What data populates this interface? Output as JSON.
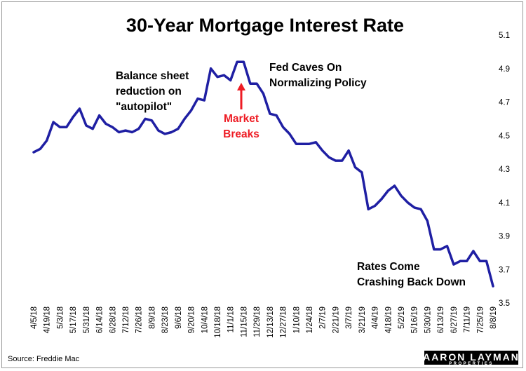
{
  "chart_data": {
    "type": "line",
    "title": "30-Year Mortgage Interest Rate",
    "xlabel": "",
    "ylabel": "",
    "ylim": [
      3.5,
      5.1
    ],
    "y_ticks": [
      "3.5",
      "3.7",
      "3.9",
      "4.1",
      "4.3",
      "4.5",
      "4.7",
      "4.9",
      "5.1"
    ],
    "x_tick_labels": [
      "4/5/18",
      "4/19/18",
      "5/3/18",
      "5/17/18",
      "5/31/18",
      "6/14/18",
      "6/28/18",
      "7/12/18",
      "7/26/18",
      "8/9/18",
      "8/23/18",
      "9/6/18",
      "9/20/18",
      "10/4/18",
      "10/18/18",
      "11/1/18",
      "11/15/18",
      "11/29/18",
      "12/13/18",
      "12/27/18",
      "1/10/18",
      "1/24/18",
      "2/7/19",
      "2/21/19",
      "3/7/19",
      "3/21/19",
      "4/4/19",
      "4/18/19",
      "5/2/19",
      "5/16/19",
      "5/30/19",
      "6/13/19",
      "6/27/19",
      "7/11/19",
      "7/25/19",
      "8/8/19"
    ],
    "grid": false,
    "legend": "none",
    "line_color": "#1f1fa3",
    "series": [
      {
        "values": [
          4.4,
          4.42,
          4.47,
          4.58,
          4.55,
          4.55,
          4.61,
          4.66,
          4.56,
          4.54,
          4.62,
          4.57,
          4.55,
          4.52,
          4.53,
          4.52,
          4.54,
          4.6,
          4.59,
          4.53,
          4.51,
          4.52,
          4.54,
          4.6,
          4.65,
          4.72,
          4.71,
          4.9,
          4.85,
          4.86,
          4.83,
          4.94,
          4.94,
          4.81,
          4.81,
          4.75,
          4.63,
          4.62,
          4.55,
          4.51,
          4.45,
          4.45,
          4.45,
          4.46,
          4.41,
          4.37,
          4.35,
          4.35,
          4.41,
          4.31,
          4.28,
          4.06,
          4.08,
          4.12,
          4.17,
          4.2,
          4.14,
          4.1,
          4.07,
          4.06,
          3.99,
          3.82,
          3.82,
          3.84,
          3.73,
          3.75,
          3.75,
          3.81,
          3.75,
          3.75,
          3.6
        ]
      }
    ],
    "annotations": [
      {
        "lines": [
          "Balance sheet",
          "reduction on",
          "\"autopilot\""
        ],
        "color": "#000000"
      },
      {
        "lines": [
          "Fed Caves On",
          "Normalizing Policy"
        ],
        "color": "#000000"
      },
      {
        "lines": [
          "Market",
          "Breaks"
        ],
        "color": "#ee1c24"
      },
      {
        "lines": [
          "Rates Come",
          "Crashing Back Down"
        ],
        "color": "#000000"
      }
    ],
    "arrow_color": "#ee1c24"
  },
  "footer": {
    "source": "Source: Freddie Mac",
    "logo_main": "AARON LAYMAN",
    "logo_sub": "PROPERTIES"
  }
}
